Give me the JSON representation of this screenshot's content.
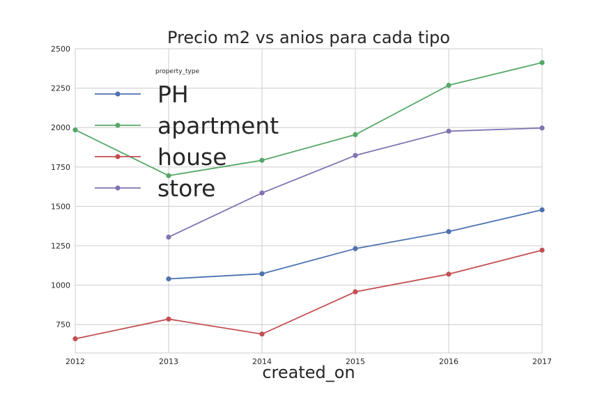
{
  "chart_data": {
    "type": "line",
    "title": "Precio m2 vs anios para cada tipo",
    "xlabel": "created_on",
    "ylabel": "",
    "x": [
      2012,
      2013,
      2014,
      2015,
      2016,
      2017
    ],
    "xlim": [
      2012,
      2017
    ],
    "ylim": [
      570,
      2500
    ],
    "x_ticks": [
      "2012",
      "2013",
      "2014",
      "2015",
      "2016",
      "2017"
    ],
    "y_ticks": [
      750,
      1000,
      1250,
      1500,
      1750,
      2000,
      2250,
      2500
    ],
    "grid": true,
    "legend": {
      "title": "property_type",
      "placement": "upper-left"
    },
    "series": [
      {
        "name": "PH",
        "color": "#4c72b0",
        "values": [
          null,
          1040,
          1072,
          1232,
          1340,
          1478
        ]
      },
      {
        "name": "apartment",
        "color": "#55a868",
        "values": [
          1985,
          1695,
          1792,
          1955,
          2268,
          2412
        ]
      },
      {
        "name": "house",
        "color": "#c44e52",
        "values": [
          660,
          785,
          690,
          958,
          1070,
          1222
        ]
      },
      {
        "name": "store",
        "color": "#8172b2",
        "values": [
          null,
          1305,
          1585,
          1823,
          1977,
          1997
        ]
      }
    ]
  }
}
